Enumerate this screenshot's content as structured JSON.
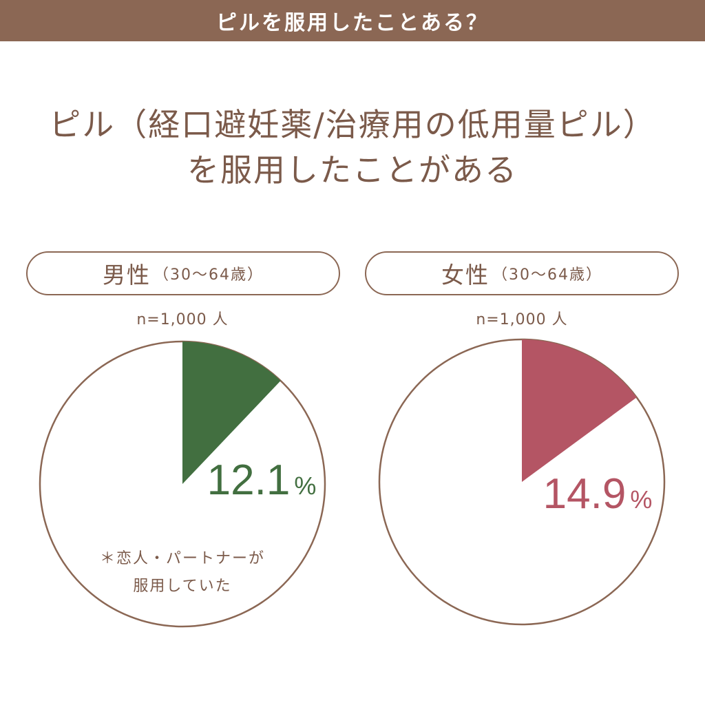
{
  "header": {
    "title": "ピルを服用したことある？"
  },
  "headline": {
    "line1": "ピル（経口避妊薬/治療用の低用量ピル）",
    "line2": "を服用したことがある"
  },
  "colors": {
    "brand": "#8b6754",
    "male": "#426f40",
    "female": "#b45564"
  },
  "chart_data": [
    {
      "type": "pie",
      "title_main": "男性",
      "title_sub": "（30～64歳）",
      "sample": "n=1,000 人",
      "value": 12.1,
      "value_label": "12.1",
      "unit": "%",
      "color": "#426f40",
      "note_line1": "＊恋人・パートナーが",
      "note_line2": "服用していた"
    },
    {
      "type": "pie",
      "title_main": "女性",
      "title_sub": "（30～64歳）",
      "sample": "n=1,000 人",
      "value": 14.9,
      "value_label": "14.9",
      "unit": "%",
      "color": "#b45564"
    }
  ]
}
